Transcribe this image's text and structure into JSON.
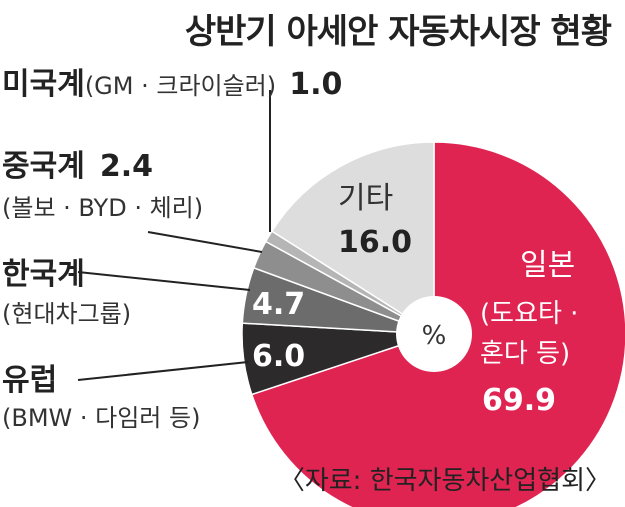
{
  "title": "상반기 아세안 자동차시장 현황",
  "unit": "%",
  "source": "〈자료: 한국자동차산업협회〉",
  "colors": {
    "japan": "#e02452",
    "europe": "#2c2a2b",
    "korea": "#6d6c6c",
    "china": "#8f8e8e",
    "usa": "#b6b5b5",
    "other": "#dedddd"
  },
  "chart_data": {
    "type": "pie",
    "unit": "%",
    "slices": [
      {
        "key": "japan",
        "label": "일본",
        "detail": "(도요타 · 혼다 등)",
        "value": 69.9,
        "value_label": "69.9"
      },
      {
        "key": "europe",
        "label": "유럽",
        "detail": "(BMW · 다임러 등)",
        "value": 6.0,
        "value_label": "6.0"
      },
      {
        "key": "korea",
        "label": "한국계",
        "detail": "(현대차그룹)",
        "value": 4.7,
        "value_label": "4.7"
      },
      {
        "key": "china",
        "label": "중국계",
        "detail": "(볼보 · BYD · 체리)",
        "value": 2.4,
        "value_label": "2.4"
      },
      {
        "key": "usa",
        "label": "미국계",
        "detail": "(GM · 크라이슬러)",
        "value": 1.0,
        "value_label": "1.0"
      },
      {
        "key": "other",
        "label": "기타",
        "detail": "",
        "value": 16.0,
        "value_label": "16.0"
      }
    ]
  }
}
